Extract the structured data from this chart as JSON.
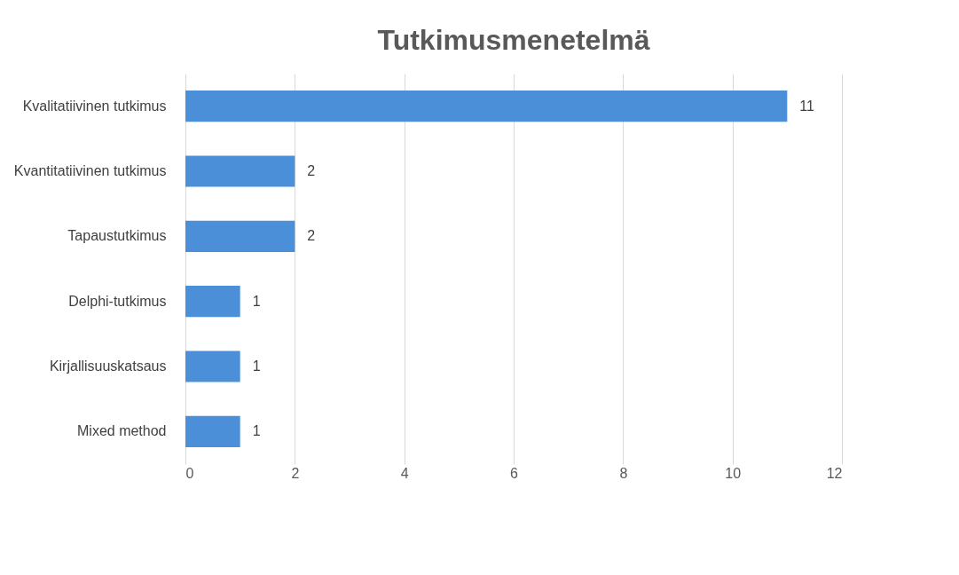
{
  "chart_data": {
    "type": "bar",
    "orientation": "horizontal",
    "title": "Tutkimusmenetelmä",
    "categories": [
      "Kvalitatiivinen tutkimus",
      "Kvantitatiivinen tutkimus",
      "Tapaustutkimus",
      "Delphi-tutkimus",
      "Kirjallisuuskatsaus",
      "Mixed method"
    ],
    "values": [
      11,
      2,
      2,
      1,
      1,
      1
    ],
    "color": "#4a8fd8",
    "xlim": [
      0,
      12
    ],
    "xticks": [
      0,
      2,
      4,
      6,
      8,
      10,
      12
    ],
    "grid": "x",
    "data_labels": true
  }
}
